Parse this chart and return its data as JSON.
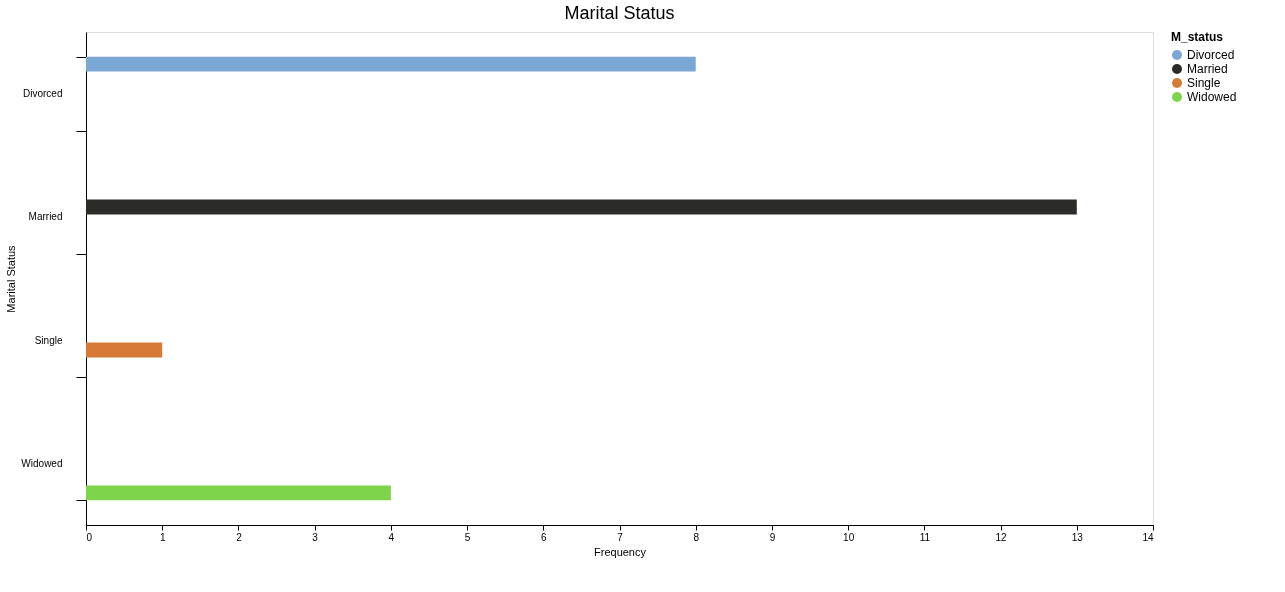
{
  "chart_data": {
    "type": "bar",
    "title": "Marital Status",
    "xlabel": "Frequency",
    "ylabel": "Marital Status",
    "legend_title": "M_status",
    "orientation": "horizontal",
    "categories": [
      "Divorced",
      "Married",
      "Single",
      "Widowed"
    ],
    "series": [
      {
        "name": "Divorced",
        "color": "#7ba7d4",
        "values": [
          8,
          null,
          null,
          null
        ]
      },
      {
        "name": "Married",
        "color": "#2b2b27",
        "values": [
          null,
          13,
          null,
          null
        ]
      },
      {
        "name": "Single",
        "color": "#d77a36",
        "values": [
          null,
          null,
          1,
          null
        ]
      },
      {
        "name": "Widowed",
        "color": "#7ed44a",
        "values": [
          null,
          null,
          null,
          4
        ]
      }
    ],
    "xlim": [
      0,
      14
    ],
    "xticks": [
      0,
      1,
      2,
      3,
      4,
      5,
      6,
      7,
      8,
      9,
      10,
      11,
      12,
      13,
      14
    ],
    "grid": false,
    "legend": "right"
  }
}
